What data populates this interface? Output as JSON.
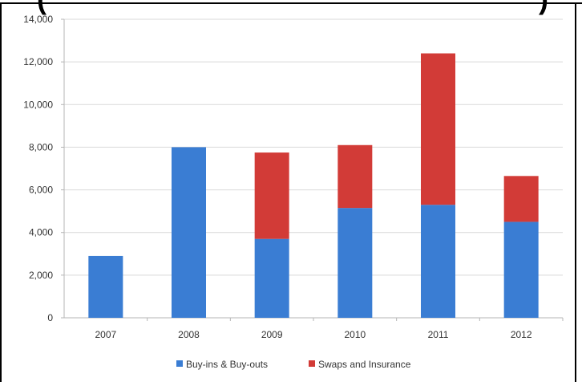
{
  "chart_data": {
    "type": "bar",
    "stacked": true,
    "categories": [
      "2007",
      "2008",
      "2009",
      "2010",
      "2011",
      "2012"
    ],
    "series": [
      {
        "name": "Buy-ins & Buy-outs",
        "color": "#3a7dd3",
        "values": [
          2900,
          8000,
          3700,
          5150,
          5300,
          4500
        ]
      },
      {
        "name": "Swaps and Insurance",
        "color": "#d23b37",
        "values": [
          0,
          0,
          4050,
          2950,
          7100,
          2150
        ]
      }
    ],
    "ylim": [
      0,
      14000
    ],
    "yticks": [
      "0",
      "2,000",
      "4,000",
      "6,000",
      "8,000",
      "10,000",
      "12,000",
      "14,000"
    ],
    "grid": true,
    "legend_position": "bottom"
  }
}
